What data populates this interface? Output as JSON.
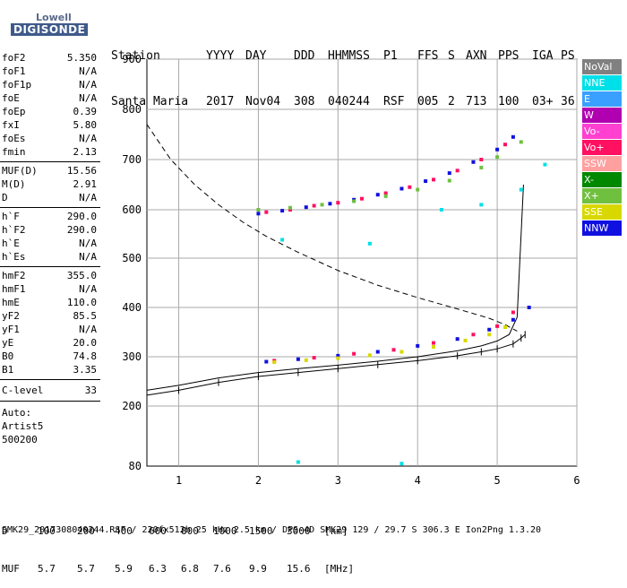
{
  "logo": {
    "line1": "Lowell",
    "line2": "DIGISONDE"
  },
  "header": {
    "labels": [
      "Station",
      "YYYY",
      "DAY",
      "DDD",
      "HHMMSS",
      "P1",
      "FFS",
      "S",
      "AXN",
      "PPS",
      "IGA",
      "PS"
    ],
    "values": [
      "Santa Maria",
      "2017",
      "Nov04",
      "308",
      "040244",
      "RSF",
      "005",
      "2",
      "713",
      "100",
      "03+",
      "36"
    ]
  },
  "params": {
    "group1": [
      {
        "k": "foF2",
        "v": "5.350"
      },
      {
        "k": "foF1",
        "v": "N/A"
      },
      {
        "k": "foF1p",
        "v": "N/A"
      },
      {
        "k": "foE",
        "v": "N/A"
      },
      {
        "k": "foEp",
        "v": "0.39"
      },
      {
        "k": "fxI",
        "v": "5.80"
      },
      {
        "k": "foEs",
        "v": "N/A"
      },
      {
        "k": "fmin",
        "v": "2.13"
      }
    ],
    "group2": [
      {
        "k": "MUF(D)",
        "v": "15.56"
      },
      {
        "k": "M(D)",
        "v": "2.91"
      },
      {
        "k": "D",
        "v": "N/A"
      }
    ],
    "group3": [
      {
        "k": "h`F",
        "v": "290.0"
      },
      {
        "k": "h`F2",
        "v": "290.0"
      },
      {
        "k": "h`E",
        "v": "N/A"
      },
      {
        "k": "h`Es",
        "v": "N/A"
      }
    ],
    "group4": [
      {
        "k": "hmF2",
        "v": "355.0"
      },
      {
        "k": "hmF1",
        "v": "N/A"
      },
      {
        "k": "hmE",
        "v": "110.0"
      },
      {
        "k": "yF2",
        "v": "85.5"
      },
      {
        "k": "yF1",
        "v": "N/A"
      },
      {
        "k": "yE",
        "v": "20.0"
      },
      {
        "k": "B0",
        "v": "74.8"
      },
      {
        "k": "B1",
        "v": "3.35"
      }
    ],
    "clevel": {
      "k": "C-level",
      "v": "33"
    },
    "auto": [
      "Auto:",
      "Artist5",
      "500200"
    ]
  },
  "legend": [
    {
      "label": "NoVal",
      "color": "#808080"
    },
    {
      "label": "NNE",
      "color": "#00e0e8"
    },
    {
      "label": "E",
      "color": "#3aa0ff"
    },
    {
      "label": "W",
      "color": "#b000b0"
    },
    {
      "label": "Vo-",
      "color": "#ff40d0"
    },
    {
      "label": "Vo+",
      "color": "#ff1060"
    },
    {
      "label": "SSW",
      "color": "#ffa0a0"
    },
    {
      "label": "X-",
      "color": "#008800"
    },
    {
      "label": "X+",
      "color": "#70c040"
    },
    {
      "label": "SSE",
      "color": "#d8d800"
    },
    {
      "label": "NNW",
      "color": "#1010e0"
    }
  ],
  "footer": {
    "row1": [
      "D",
      "100",
      "200",
      "400",
      "600",
      "800",
      "1000",
      "1500",
      "3000",
      "[km]"
    ],
    "row2": [
      "MUF",
      "5.7",
      "5.7",
      "5.9",
      "6.3",
      "6.8",
      "7.6",
      "9.9",
      "15.6",
      "[MHz]"
    ],
    "fileline": "SMK29_2017308040244.RSF / 220fx512h 25 kHz 2.5 km / DPS-4D SMK29 129 / 29.7 S 306.3 E Ion2Png 1.3.20"
  },
  "chart_data": {
    "type": "scatter",
    "xlim": [
      0.6,
      6.0
    ],
    "ylim": [
      80,
      900
    ],
    "xticks": [
      "1",
      "2",
      "3",
      "4",
      "5",
      "6"
    ],
    "yticks": [
      "200",
      "300",
      "400",
      "500",
      "600",
      "700",
      "800",
      "900"
    ],
    "ylabel_bottom": "80",
    "grid": true,
    "series": [
      {
        "name": "NNW",
        "x": [
          2.0,
          2.3,
          2.6,
          2.9,
          3.2,
          3.5,
          3.8,
          4.1,
          4.4,
          4.7,
          5.0,
          5.2,
          2.1,
          2.5,
          3.0,
          3.5,
          4.0,
          4.5,
          4.9,
          5.2,
          5.4
        ],
        "y": [
          592,
          598,
          605,
          612,
          620,
          630,
          642,
          657,
          673,
          695,
          720,
          745,
          290,
          295,
          302,
          310,
          322,
          336,
          355,
          375,
          400
        ]
      },
      {
        "name": "Vo+",
        "x": [
          2.1,
          2.4,
          2.7,
          3.0,
          3.3,
          3.6,
          3.9,
          4.2,
          4.5,
          4.8,
          5.1,
          2.2,
          2.7,
          3.2,
          3.7,
          4.2,
          4.7,
          5.0,
          5.2
        ],
        "y": [
          595,
          600,
          608,
          614,
          622,
          633,
          645,
          660,
          678,
          700,
          730,
          292,
          298,
          306,
          314,
          328,
          345,
          362,
          390
        ]
      },
      {
        "name": "SSE",
        "x": [
          2.2,
          2.6,
          3.0,
          3.4,
          3.8,
          4.2,
          4.6,
          4.9,
          5.1
        ],
        "y": [
          289,
          293,
          297,
          303,
          310,
          320,
          333,
          345,
          360
        ]
      },
      {
        "name": "X+",
        "x": [
          2.0,
          2.4,
          2.8,
          3.2,
          3.6,
          4.0,
          4.4,
          4.8,
          5.0,
          5.3
        ],
        "y": [
          600,
          604,
          610,
          617,
          627,
          640,
          658,
          684,
          705,
          735
        ]
      },
      {
        "name": "NNE",
        "x": [
          2.3,
          3.4,
          4.3,
          4.8,
          5.3,
          5.6,
          2.5,
          3.8
        ],
        "y": [
          538,
          530,
          600,
          610,
          640,
          690,
          88,
          85
        ]
      }
    ],
    "virtual_height_curve": {
      "x": [
        0.6,
        1.0,
        1.5,
        2.0,
        2.5,
        3.0,
        3.5,
        4.0,
        4.5,
        4.8,
        5.0,
        5.15,
        5.25,
        5.33
      ],
      "y": [
        232,
        242,
        257,
        268,
        276,
        283,
        291,
        300,
        312,
        322,
        332,
        345,
        380,
        650
      ]
    },
    "true_height_curve": {
      "x": [
        0.6,
        1.0,
        1.5,
        2.0,
        2.5,
        3.0,
        3.5,
        4.0,
        4.5,
        4.8,
        5.0,
        5.2,
        5.3,
        5.35
      ],
      "y": [
        222,
        232,
        248,
        260,
        268,
        276,
        284,
        292,
        302,
        310,
        316,
        326,
        338,
        345
      ]
    },
    "dashed_curve": {
      "x": [
        0.6,
        0.9,
        1.2,
        1.5,
        1.8,
        2.1,
        2.5,
        3.0,
        3.5,
        4.0,
        4.5,
        4.9,
        5.1,
        5.25
      ],
      "y": [
        770,
        700,
        650,
        610,
        575,
        545,
        512,
        475,
        445,
        420,
        397,
        378,
        365,
        352
      ]
    }
  }
}
